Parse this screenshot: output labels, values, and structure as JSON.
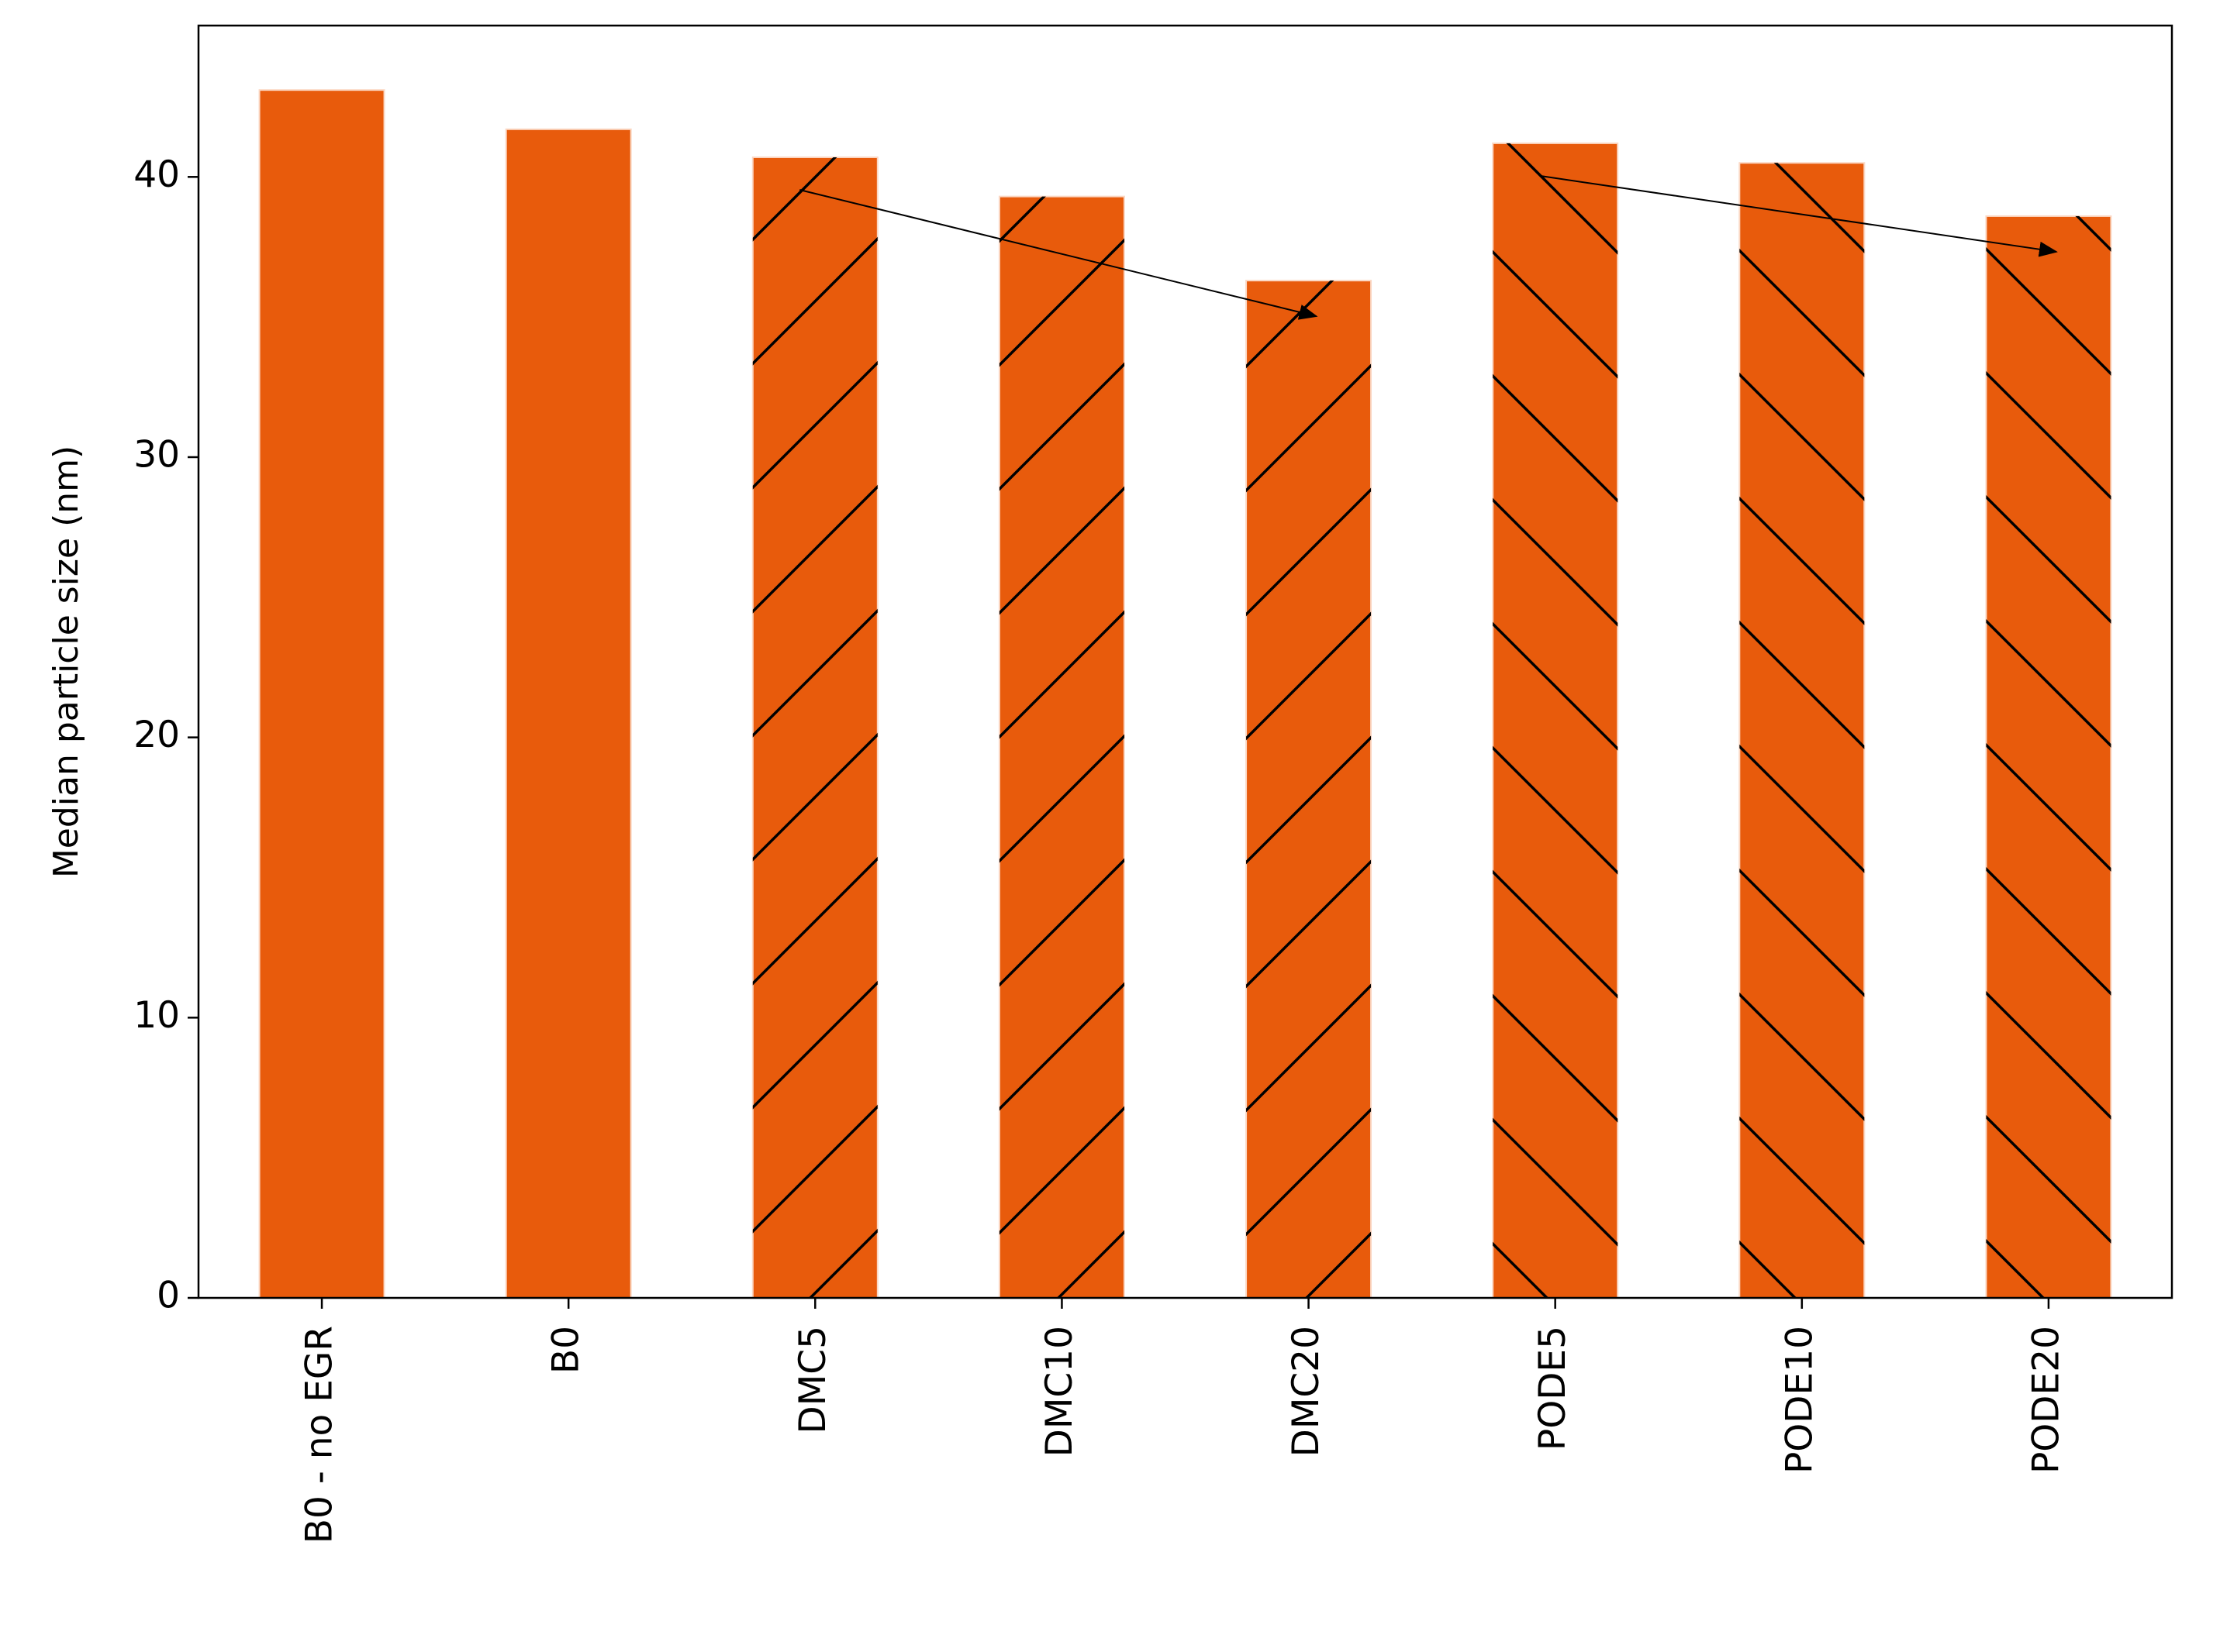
{
  "chart_data": {
    "type": "bar",
    "y_label": "Median particle size (nm)",
    "categories": [
      "B0 - no EGR",
      "B0",
      "DMC5",
      "DMC10",
      "DMC20",
      "PODE5",
      "PODE10",
      "PODE20"
    ],
    "values": [
      43.1,
      41.7,
      40.7,
      39.3,
      36.3,
      41.2,
      40.5,
      38.6
    ],
    "hatches": [
      null,
      null,
      "/",
      "/",
      "/",
      "\\",
      "\\",
      "\\"
    ],
    "color": "#e85b0c",
    "ylim": [
      0,
      45.4
    ],
    "yticks": [
      0,
      10,
      20,
      30,
      40
    ],
    "grid": false
  }
}
